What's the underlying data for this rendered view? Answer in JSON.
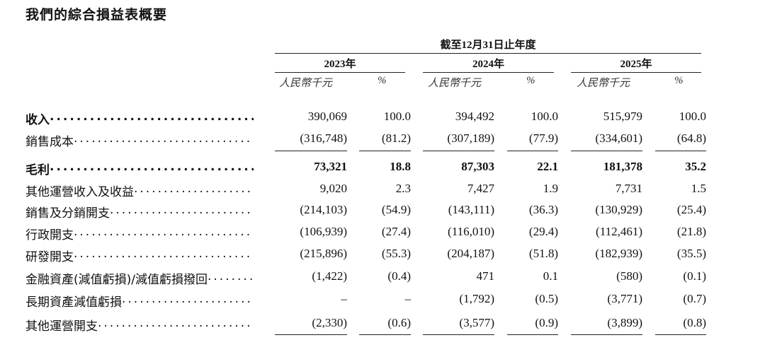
{
  "title": "我們的綜合損益表概要",
  "period_header": "截至12月31日止年度",
  "years": [
    "2023年",
    "2024年",
    "2025年"
  ],
  "subheaders": [
    "人民幣千元",
    "%",
    "人民幣千元",
    "%",
    "人民幣千元",
    "%"
  ],
  "table": {
    "rows": [
      [
        "收入",
        "390,069",
        "100.0",
        "394,492",
        "100.0",
        "515,979",
        "100.0"
      ],
      [
        "銷售成本",
        "(316,748)",
        "(81.2)",
        "(307,189)",
        "(77.9)",
        "(334,601)",
        "(64.8)"
      ],
      [
        "毛利",
        "73,321",
        "18.8",
        "87,303",
        "22.1",
        "181,378",
        "35.2"
      ],
      [
        "其他運營收入及收益",
        "9,020",
        "2.3",
        "7,427",
        "1.9",
        "7,731",
        "1.5"
      ],
      [
        "銷售及分銷開支",
        "(214,103)",
        "(54.9)",
        "(143,111)",
        "(36.3)",
        "(130,929)",
        "(25.4)"
      ],
      [
        "行政開支",
        "(106,939)",
        "(27.4)",
        "(116,010)",
        "(29.4)",
        "(112,461)",
        "(21.8)"
      ],
      [
        "研發開支",
        "(215,896)",
        "(55.3)",
        "(204,187)",
        "(51.8)",
        "(182,939)",
        "(35.5)"
      ],
      [
        "金融資產(減值虧損)/減值虧損撥回",
        "(1,422)",
        "(0.4)",
        "471",
        "0.1",
        "(580)",
        "(0.1)"
      ],
      [
        "長期資產減值虧損",
        "–",
        "–",
        "(1,792)",
        "(0.5)",
        "(3,771)",
        "(0.7)"
      ],
      [
        "其他運營開支",
        "(2,330)",
        "(0.6)",
        "(3,577)",
        "(0.9)",
        "(3,899)",
        "(0.8)"
      ]
    ]
  }
}
